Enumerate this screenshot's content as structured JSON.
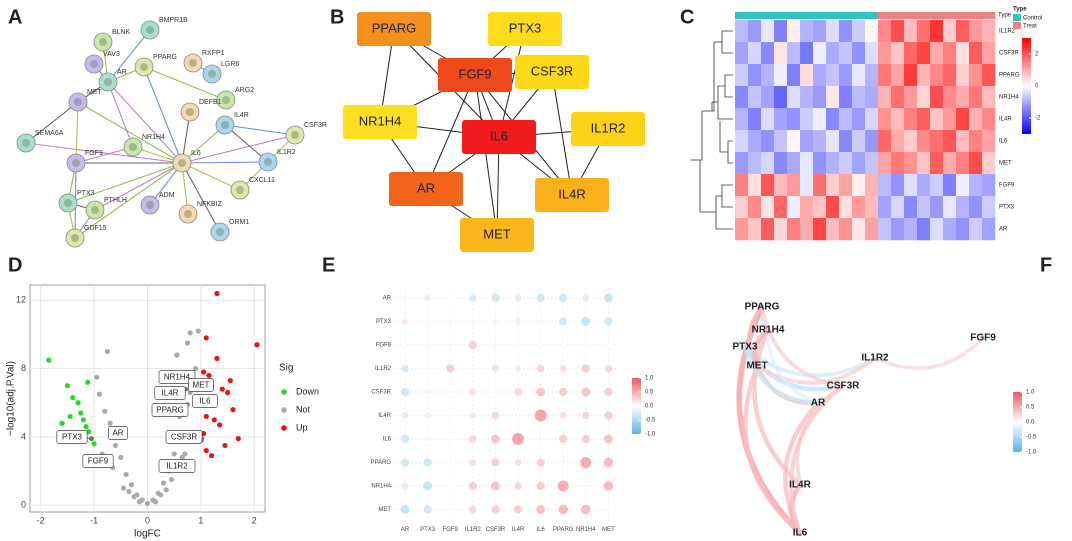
{
  "panel_labels": [
    "A",
    "B",
    "C",
    "D",
    "E",
    "F"
  ],
  "network_a": {
    "nodes": [
      "BMPR1B",
      "BLNK",
      "VAV3",
      "RXFP1",
      "LGR6",
      "PPARG",
      "AR",
      "ARG2",
      "MET",
      "DEFB1",
      "IL4R",
      "CSF3R",
      "SEMA6A",
      "NR1H4",
      "FGF9",
      "IL6",
      "IL1R2",
      "CXCL11",
      "PTX3",
      "PTHLH",
      "ADM",
      "NFKBIZ",
      "ORM1",
      "GDF15"
    ]
  },
  "network_b": {
    "nodes": [
      {
        "label": "PPARG",
        "color": "#f5901e"
      },
      {
        "label": "PTX3",
        "color": "#ffdb1c"
      },
      {
        "label": "FGF9",
        "color": "#f04a1c"
      },
      {
        "label": "CSF3R",
        "color": "#ffd81a"
      },
      {
        "label": "NR1H4",
        "color": "#ffdf20"
      },
      {
        "label": "IL6",
        "color": "#ee1c1c"
      },
      {
        "label": "IL1R2",
        "color": "#ffd21a"
      },
      {
        "label": "AR",
        "color": "#f2641a"
      },
      {
        "label": "IL4R",
        "color": "#fbb11b"
      },
      {
        "label": "MET",
        "color": "#f9b71c"
      }
    ]
  },
  "chart_data": [
    {
      "type": "heatmap",
      "rows": [
        "IL1R2",
        "CSF3R",
        "PPARG",
        "NR1H4",
        "IL4R",
        "IL6",
        "MET",
        "FGF9",
        "PTX3",
        "AR"
      ],
      "column_type": [
        "Control",
        "Control",
        "Control",
        "Control",
        "Control",
        "Control",
        "Control",
        "Control",
        "Control",
        "Control",
        "Control",
        "Treat",
        "Treat",
        "Treat",
        "Treat",
        "Treat",
        "Treat",
        "Treat",
        "Treat",
        "Treat"
      ],
      "type_label": "Type",
      "legend_title": "Type",
      "legend": [
        {
          "name": "Control",
          "color": "#2ec4c4"
        },
        {
          "name": "Treat",
          "color": "#f08080"
        }
      ],
      "values": [
        [
          -0.8,
          -1.2,
          -0.3,
          -1.5,
          0.2,
          -0.9,
          -1.1,
          -0.4,
          -1.3,
          -0.6,
          0.1,
          1.4,
          2.1,
          0.8,
          1.7,
          2.4,
          0.6,
          1.9,
          1.2,
          0.9
        ],
        [
          -1.1,
          -0.5,
          -1.4,
          0.3,
          -0.8,
          -1.6,
          -0.2,
          -1.0,
          -0.7,
          -1.3,
          -0.4,
          1.2,
          0.7,
          1.8,
          2.2,
          1.0,
          1.5,
          0.4,
          1.9,
          1.1
        ],
        [
          -0.6,
          -1.3,
          -0.9,
          -0.2,
          -1.5,
          0.4,
          -1.0,
          -0.7,
          -1.2,
          -0.3,
          -0.9,
          1.6,
          1.1,
          2.3,
          0.9,
          1.4,
          1.8,
          0.6,
          1.3,
          2.0
        ],
        [
          -1.4,
          -0.7,
          -1.1,
          -1.8,
          -0.4,
          -0.9,
          -1.2,
          0.3,
          -1.5,
          -0.8,
          -1.0,
          0.9,
          1.7,
          1.2,
          0.5,
          2.1,
          1.4,
          1.0,
          1.6,
          0.8
        ],
        [
          -0.9,
          -1.5,
          -0.4,
          -1.1,
          -1.3,
          -0.6,
          -0.2,
          -1.4,
          -0.8,
          -1.2,
          -0.5,
          1.3,
          0.8,
          1.5,
          1.9,
          0.7,
          1.2,
          2.2,
          0.9,
          1.4
        ],
        [
          -0.5,
          -1.0,
          -1.3,
          -0.7,
          0.1,
          -1.1,
          -0.9,
          -0.3,
          -1.4,
          -0.6,
          -1.2,
          1.8,
          1.0,
          0.6,
          1.4,
          1.7,
          2.0,
          0.8,
          1.5,
          1.1
        ],
        [
          -1.2,
          -0.8,
          -0.5,
          -1.4,
          -1.0,
          -0.3,
          -1.3,
          -0.9,
          -0.6,
          -1.1,
          -0.7,
          1.1,
          1.6,
          1.3,
          0.7,
          1.9,
          1.0,
          1.5,
          2.1,
          0.6
        ],
        [
          1.5,
          0.4,
          2.0,
          0.8,
          1.2,
          -0.3,
          1.7,
          0.6,
          1.1,
          0.2,
          0.9,
          -0.8,
          -1.3,
          -0.4,
          -1.0,
          -0.6,
          -1.5,
          -0.2,
          -0.9,
          -1.1
        ],
        [
          0.6,
          1.4,
          0.3,
          1.8,
          -0.2,
          1.0,
          0.7,
          2.1,
          0.4,
          1.2,
          0.8,
          -1.1,
          -0.5,
          -1.4,
          -0.7,
          -1.2,
          -0.3,
          -0.9,
          -1.3,
          -0.6
        ],
        [
          1.2,
          0.7,
          1.9,
          0.5,
          1.5,
          1.0,
          2.2,
          0.8,
          1.3,
          0.3,
          1.1,
          -0.7,
          -1.2,
          -0.9,
          -1.5,
          -0.4,
          -1.0,
          -1.3,
          -0.6,
          -1.1
        ]
      ],
      "zlim": [
        -3,
        3
      ],
      "zticks": [
        2,
        0,
        -2
      ],
      "colors": [
        "#0000ff",
        "#ffffff",
        "#ff0000"
      ]
    },
    {
      "type": "scatter",
      "xlabel": "logFC",
      "ylabel": "−log10(adj.P.Val)",
      "legend_title": "Sig",
      "xlim": [
        -2.2,
        2.2
      ],
      "ylim": [
        -0.4,
        12.9
      ],
      "xticks": [
        -2,
        -1,
        0,
        1,
        2
      ],
      "yticks": [
        0,
        4,
        8,
        12
      ],
      "grid": true,
      "series": [
        {
          "name": "Down",
          "color": "#22dd22",
          "x": [
            -1.85,
            -1.5,
            -1.4,
            -1.3,
            -1.25,
            -1.2,
            -1.15,
            -1.1,
            -1.05,
            -1.0,
            -1.45,
            -1.6,
            -1.12,
            -1.3
          ],
          "values": [
            8.5,
            7.0,
            6.3,
            6.0,
            5.4,
            5.0,
            4.6,
            4.3,
            3.9,
            3.6,
            5.2,
            4.8,
            7.2,
            4.1
          ]
        },
        {
          "name": "Not",
          "color": "#aaaaaa",
          "x": [
            -0.9,
            -0.8,
            -0.7,
            -0.6,
            -0.5,
            -0.4,
            -0.3,
            -0.2,
            -0.1,
            0,
            0.1,
            0.2,
            0.3,
            0.4,
            0.5,
            0.6,
            0.7,
            0.8,
            0.9,
            -0.85,
            -0.65,
            -0.45,
            -0.25,
            0.25,
            0.45,
            0.65,
            0.85,
            -0.95,
            0.95,
            0.55,
            0.75,
            -0.75,
            0.15,
            -0.15,
            0.35,
            -0.35,
            0.9,
            0.8,
            0.6,
            0.7
          ],
          "values": [
            6.5,
            5.5,
            4.8,
            3.5,
            2.8,
            1.8,
            1.2,
            0.6,
            0.3,
            0.1,
            0.3,
            0.7,
            1.3,
            2.0,
            3.0,
            4.2,
            5.5,
            6.6,
            8.0,
            3.0,
            2.2,
            1.0,
            0.5,
            0.6,
            1.5,
            2.8,
            4.0,
            7.5,
            10.2,
            8.8,
            9.5,
            9.0,
            0.2,
            0.2,
            0.9,
            0.8,
            6.0,
            10.1,
            5.2,
            3.0
          ]
        },
        {
          "name": "Up",
          "color": "#ee1111",
          "x": [
            2.05,
            1.3,
            1.1,
            1.05,
            1.15,
            1.2,
            1.4,
            1.5,
            1.6,
            1.1,
            1.25,
            1.35,
            1.05,
            1.0,
            1.45,
            1.7,
            1.1,
            1.2,
            1.3,
            1.02,
            1.55
          ],
          "values": [
            9.4,
            12.4,
            9.8,
            7.8,
            7.6,
            7.0,
            6.8,
            6.6,
            5.6,
            5.2,
            5.0,
            4.7,
            4.2,
            3.8,
            3.5,
            3.9,
            3.2,
            2.9,
            8.6,
            6.0,
            7.3
          ]
        }
      ],
      "genes": [
        {
          "label": "PTX3",
          "x": -1.05,
          "y": 3.9
        },
        {
          "label": "AR",
          "x": -0.5,
          "y": 4.2
        },
        {
          "label": "FGF9",
          "x": -0.85,
          "y": 2.4
        },
        {
          "label": "NR1H4",
          "x": 0.82,
          "y": 7.7
        },
        {
          "label": "IL4R",
          "x": 0.72,
          "y": 6.8
        },
        {
          "label": "MET",
          "x": 0.97,
          "y": 7.2
        },
        {
          "label": "PPARG",
          "x": 0.75,
          "y": 5.9
        },
        {
          "label": "IL6",
          "x": 1.0,
          "y": 6.3
        },
        {
          "label": "CSF3R",
          "x": 1.02,
          "y": 3.9
        },
        {
          "label": "IL1R2",
          "x": 0.72,
          "y": 2.2
        }
      ]
    },
    {
      "type": "correlation",
      "categories": [
        "AR",
        "PTX3",
        "FGF9",
        "IL1R2",
        "CSF3R",
        "IL4R",
        "IL6",
        "PPARG",
        "NR1H4",
        "MET"
      ],
      "values": [
        [
          null,
          0.15,
          0.02,
          -0.25,
          -0.3,
          -0.2,
          -0.3,
          -0.3,
          -0.2,
          -0.35
        ],
        [
          0.15,
          null,
          0.05,
          -0.05,
          -0.1,
          -0.15,
          -0.1,
          -0.3,
          -0.35,
          -0.3
        ],
        [
          0.02,
          0.05,
          null,
          0.3,
          0.05,
          0.02,
          0.03,
          0.02,
          0.02,
          0.02
        ],
        [
          -0.25,
          -0.05,
          0.3,
          null,
          0.2,
          0.15,
          0.25,
          0.2,
          0.3,
          0.25
        ],
        [
          -0.3,
          -0.1,
          0.05,
          0.2,
          null,
          0.25,
          0.35,
          0.3,
          0.35,
          0.3
        ],
        [
          -0.2,
          -0.15,
          0.02,
          0.15,
          0.25,
          null,
          0.55,
          0.2,
          0.25,
          0.3
        ],
        [
          -0.3,
          -0.1,
          0.03,
          0.25,
          0.35,
          0.55,
          null,
          0.3,
          0.3,
          0.35
        ],
        [
          -0.3,
          -0.3,
          0.02,
          0.2,
          0.3,
          0.2,
          0.3,
          null,
          0.5,
          0.4
        ],
        [
          -0.2,
          -0.35,
          0.02,
          0.3,
          0.35,
          0.25,
          0.3,
          0.5,
          null,
          0.4
        ],
        [
          -0.35,
          -0.3,
          0.02,
          0.25,
          0.3,
          0.3,
          0.35,
          0.4,
          0.4,
          null
        ]
      ],
      "zlim": [
        -1,
        1
      ],
      "zticks": [
        {
          "value": 1,
          "label": "1.0"
        },
        0.5,
        {
          "value": 0,
          "label": "0.0"
        },
        -0.5,
        {
          "value": -1,
          "label": "-1.0"
        }
      ],
      "colors": [
        "#5ab4ec",
        "#ffffff",
        "#ec5a60"
      ]
    },
    {
      "type": "network",
      "nodes": [
        "PPARG",
        "NR1H4",
        "PTX3",
        "MET",
        "IL1R2",
        "FGF9",
        "CSF3R",
        "AR",
        "IL4R",
        "IL6"
      ],
      "edges": [
        {
          "from": "PPARG",
          "to": "NR1H4",
          "value": -0.3
        },
        {
          "from": "PPARG",
          "to": "IL6",
          "value": 0.6
        },
        {
          "from": "PPARG",
          "to": "MET",
          "value": 0.4
        },
        {
          "from": "PTX3",
          "to": "IL1R2",
          "value": -0.3
        },
        {
          "from": "PTX3",
          "to": "CSF3R",
          "value": -0.4
        },
        {
          "from": "NR1H4",
          "to": "IL4R",
          "value": 0.4
        },
        {
          "from": "MET",
          "to": "IL1R2",
          "value": 0.3
        },
        {
          "from": "IL1R2",
          "to": "FGF9",
          "value": 0.25
        },
        {
          "from": "MET",
          "to": "AR",
          "value": 0.4
        },
        {
          "from": "CSF3R",
          "to": "IL4R",
          "value": 0.3
        },
        {
          "from": "AR",
          "to": "IL6",
          "value": 0.4
        },
        {
          "from": "MET",
          "to": "IL6",
          "value": 0.4
        },
        {
          "from": "NR1H4",
          "to": "AR",
          "value": -0.2
        },
        {
          "from": "IL4R",
          "to": "IL6",
          "value": 0.5
        },
        {
          "from": "CSF3R",
          "to": "IL6",
          "value": 0.35
        },
        {
          "from": "PPARG",
          "to": "CSF3R",
          "value": 0.3
        },
        {
          "from": "NR1H4",
          "to": "MET",
          "value": 0.5
        },
        {
          "from": "PTX3",
          "to": "AR",
          "value": -0.35
        }
      ],
      "zlim": [
        -1,
        1
      ],
      "zticks": [
        {
          "value": 1,
          "label": "1.0"
        },
        0.5,
        {
          "value": 0,
          "label": "0.0"
        },
        -0.5,
        {
          "value": -1,
          "label": "-1.0"
        }
      ],
      "colors": [
        "#5ab4ec",
        "#ffffff",
        "#ec5a60"
      ]
    }
  ]
}
